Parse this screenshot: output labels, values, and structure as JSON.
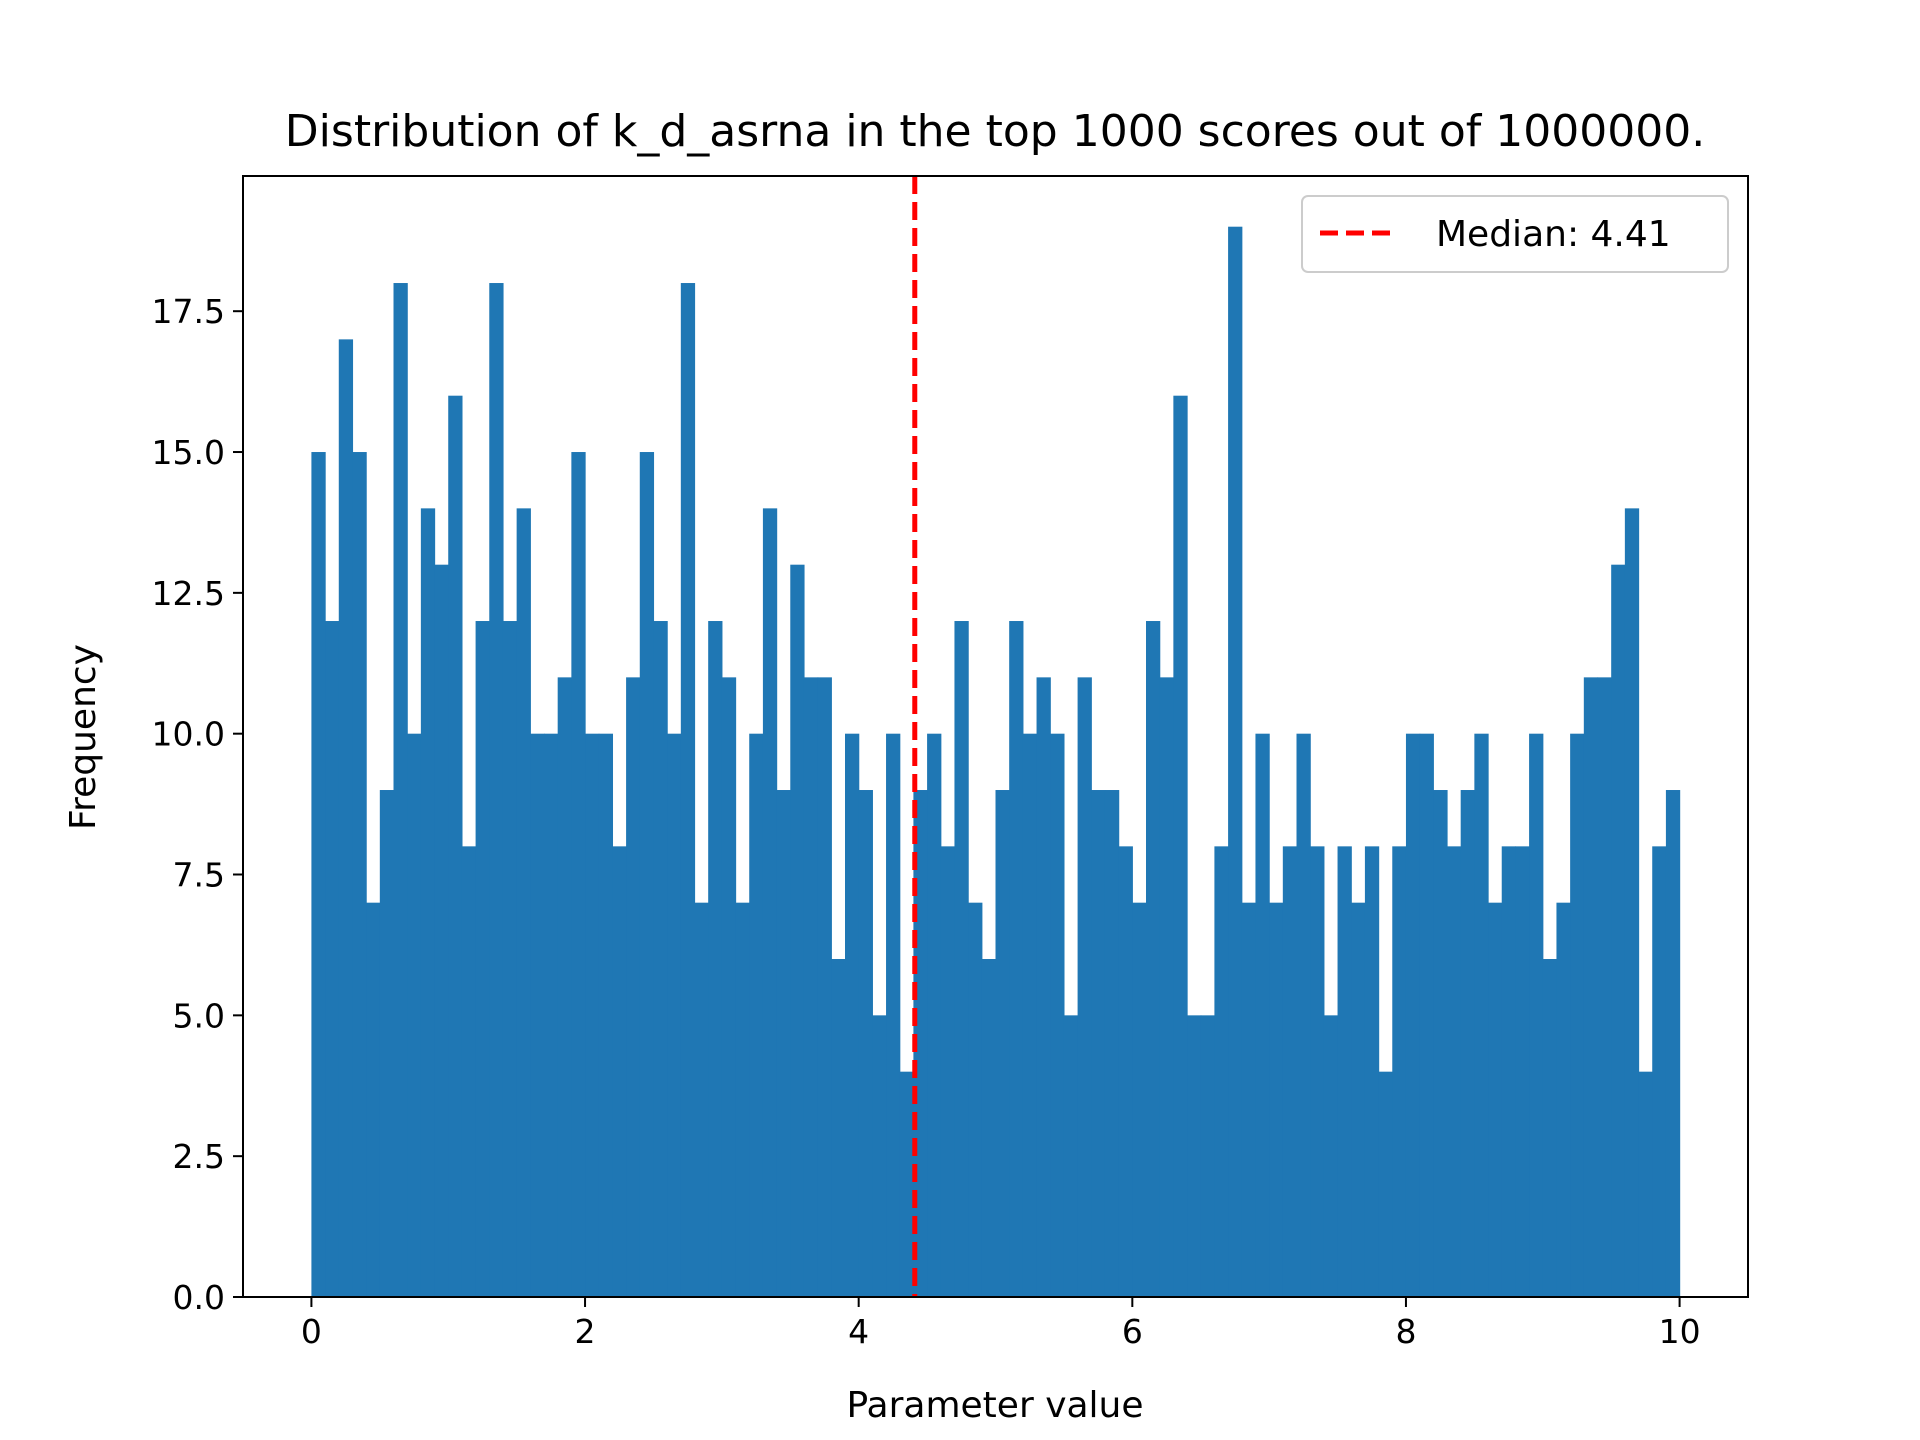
{
  "chart_data": {
    "type": "bar",
    "title": "Distribution of k_d_asrna in the top 1000 scores out of 1000000.",
    "xlabel": "Parameter value",
    "ylabel": "Frequency",
    "xlim": [
      -0.5,
      10.5
    ],
    "ylim": [
      0,
      19.9
    ],
    "bin_start": 0.0,
    "bin_width": 0.1,
    "values": [
      15,
      12,
      17,
      15,
      7,
      9,
      18,
      10,
      14,
      13,
      16,
      8,
      12,
      18,
      12,
      14,
      10,
      10,
      11,
      15,
      10,
      10,
      8,
      11,
      15,
      12,
      10,
      18,
      7,
      12,
      11,
      7,
      10,
      14,
      9,
      13,
      11,
      11,
      6,
      10,
      9,
      5,
      10,
      4,
      9,
      10,
      8,
      12,
      7,
      6,
      9,
      12,
      10,
      11,
      10,
      5,
      11,
      9,
      9,
      8,
      7,
      12,
      11,
      16,
      5,
      5,
      8,
      19,
      7,
      10,
      7,
      8,
      10,
      8,
      5,
      8,
      7,
      8,
      4,
      8,
      10,
      10,
      9,
      8,
      9,
      10,
      7,
      8,
      8,
      10,
      6,
      7,
      10,
      11,
      11,
      13,
      14,
      4,
      8,
      9
    ],
    "bar_color": "#1f77b4",
    "x_ticks": [
      0,
      2,
      4,
      6,
      8,
      10
    ],
    "x_tick_labels": [
      "0",
      "2",
      "4",
      "6",
      "8",
      "10"
    ],
    "y_ticks": [
      0,
      2.5,
      5,
      7.5,
      10,
      12.5,
      15,
      17.5
    ],
    "y_tick_labels": [
      "0.0",
      "2.5",
      "5.0",
      "7.5",
      "10.0",
      "12.5",
      "15.0",
      "17.5"
    ],
    "median": 4.41,
    "median_color": "#ff0000",
    "legend": {
      "label": "Median: 4.41",
      "placement": "upper right"
    },
    "grid": false
  }
}
